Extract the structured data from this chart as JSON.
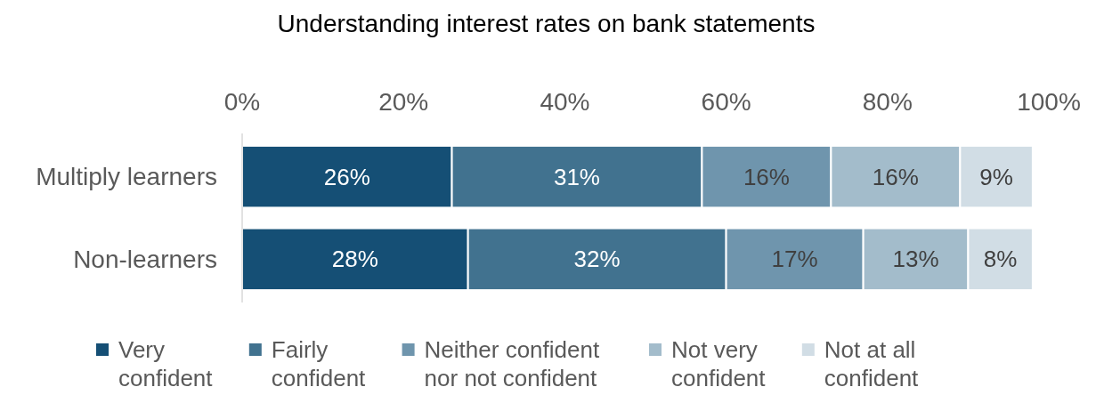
{
  "chart_data": {
    "type": "bar",
    "orientation": "horizontal",
    "stacked": true,
    "title": "Understanding interest rates on bank statements",
    "categories": [
      "Multiply learners",
      "Non-learners"
    ],
    "series": [
      {
        "name": "Very confident",
        "color": "#154f75",
        "values": [
          26,
          28
        ],
        "value_labels": [
          "26%",
          "28%"
        ]
      },
      {
        "name": "Fairly confident",
        "color": "#41728f",
        "values": [
          31,
          32
        ],
        "value_labels": [
          "31%",
          "32%"
        ]
      },
      {
        "name": "Neither confident nor not confident",
        "color": "#6f95ad",
        "values": [
          16,
          17
        ],
        "value_labels": [
          "16%",
          "17%"
        ]
      },
      {
        "name": "Not very confident",
        "color": "#a3bccb",
        "values": [
          16,
          13
        ],
        "value_labels": [
          "16%",
          "13%"
        ]
      },
      {
        "name": "Not at all confident",
        "color": "#d1dde5",
        "values": [
          9,
          8
        ],
        "value_labels": [
          "9%",
          "8%"
        ]
      }
    ],
    "xlim": [
      0,
      100
    ],
    "xticks": [
      {
        "value": 0,
        "label": "0%"
      },
      {
        "value": 20,
        "label": "20%"
      },
      {
        "value": 40,
        "label": "40%"
      },
      {
        "value": 60,
        "label": "60%"
      },
      {
        "value": 80,
        "label": "80%"
      },
      {
        "value": 100,
        "label": "100%"
      }
    ],
    "legend": "bottom",
    "grid": false
  }
}
